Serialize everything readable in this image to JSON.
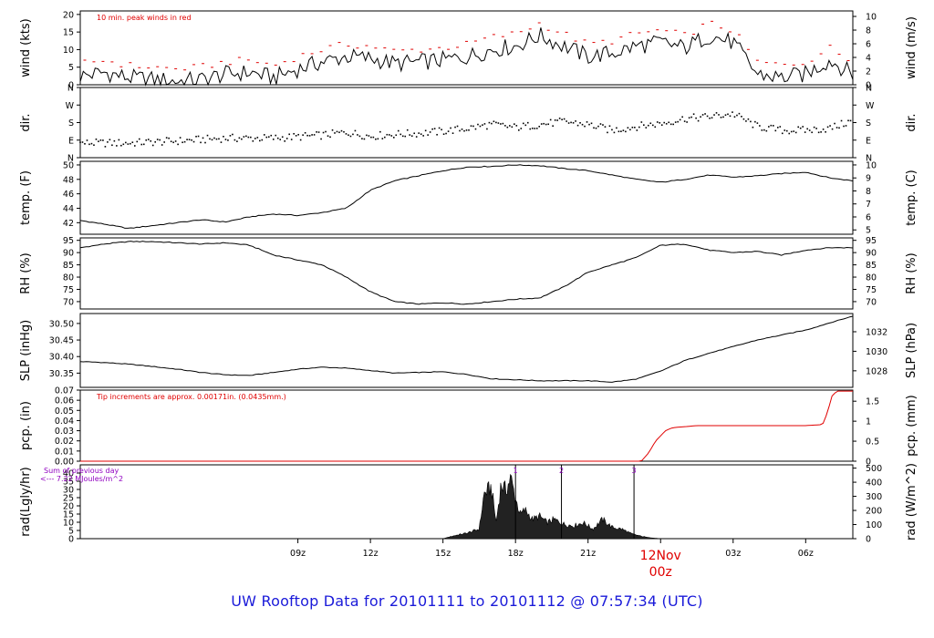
{
  "chart_data": {
    "type": "line",
    "title": "UW Rooftop Data for 20101111  to  20101112 @ 07:57:34  (UTC)",
    "x_axis": {
      "ticks": [
        "09z",
        "12z",
        "15z",
        "18z",
        "21z",
        "00z",
        "03z",
        "06z"
      ],
      "day_label": "12Nov",
      "day_sublabel": "00z",
      "xlim": [
        -24.0,
        7.95
      ],
      "colors": {
        "day_label": "#e00000"
      }
    },
    "panels": [
      {
        "id": "wind",
        "ylabel_left": "wind (kts)",
        "ylabel_right": "wind (m/s)",
        "ylim": [
          0,
          21
        ],
        "left_ticks": [
          0,
          5,
          10,
          15,
          20
        ],
        "right_ticks": [
          {
            "label": "0",
            "value": 0
          },
          {
            "label": "2",
            "value": 3.89
          },
          {
            "label": "4",
            "value": 7.78
          },
          {
            "label": "6",
            "value": 11.66
          },
          {
            "label": "8",
            "value": 15.55
          },
          {
            "label": "10",
            "value": 19.44
          }
        ],
        "annotation": "10 min. peak winds in red",
        "annotation_color": "#e00000",
        "peak_color": "#e00000",
        "series": [
          {
            "name": "wind",
            "style": "line",
            "color": "#000000",
            "x": [
              -24.0,
              -23.0,
              -22.0,
              -21.0,
              -20.0,
              -19.0,
              -18.0,
              -17.0,
              -16.0,
              -15.0,
              -14.0,
              -13.0,
              -12.0,
              -11.0,
              -10.0,
              -9.0,
              -8.0,
              -7.0,
              -6.0,
              -5.0,
              -4.0,
              -3.0,
              -2.0,
              -1.0,
              0.0,
              1.0,
              2.0,
              3.0,
              4.0,
              5.0,
              6.0,
              7.0,
              7.95
            ],
            "y": [
              2.5,
              3.5,
              2.0,
              1.5,
              1.0,
              1.5,
              3.0,
              3.5,
              2.0,
              4.5,
              6.5,
              8.0,
              7.5,
              6.0,
              6.5,
              7.0,
              8.0,
              10.0,
              11.0,
              14.0,
              11.0,
              8.0,
              9.0,
              11.0,
              12.0,
              10.5,
              14.0,
              12.0,
              3.0,
              2.0,
              3.0,
              7.0,
              3.0
            ]
          }
        ]
      },
      {
        "id": "dir",
        "ylabel_left": "dir.",
        "ylabel_right": "dir.",
        "ylim": [
          0,
          360
        ],
        "left_ticks": [
          {
            "label": "N",
            "value": 0
          },
          {
            "label": "E",
            "value": 90
          },
          {
            "label": "S",
            "value": 180
          },
          {
            "label": "W",
            "value": 270
          },
          {
            "label": "N",
            "value": 360
          }
        ],
        "right_ticks": [
          {
            "label": "N",
            "value": 0
          },
          {
            "label": "E",
            "value": 90
          },
          {
            "label": "S",
            "value": 180
          },
          {
            "label": "W",
            "value": 270
          },
          {
            "label": "N",
            "value": 360
          }
        ],
        "series": [
          {
            "name": "dir",
            "style": "points",
            "color": "#000000",
            "x": [
              -24.0,
              -22.0,
              -20.0,
              -18.0,
              -16.0,
              -14.0,
              -13.0,
              -12.0,
              -11.0,
              -10.0,
              -9.0,
              -8.0,
              -7.0,
              -6.0,
              -5.0,
              -4.0,
              -3.0,
              -2.0,
              -1.0,
              0.0,
              1.0,
              2.0,
              3.0,
              4.0,
              5.0,
              6.0,
              7.0,
              7.95
            ],
            "y": [
              75,
              75,
              85,
              100,
              100,
              115,
              130,
              110,
              120,
              125,
              135,
              150,
              170,
              155,
              170,
              185,
              170,
              140,
              160,
              175,
              200,
              210,
              225,
              160,
              140,
              140,
              150,
              190
            ]
          }
        ]
      },
      {
        "id": "temp",
        "ylabel_left": "temp. (F)",
        "ylabel_right": "temp. (C)",
        "ylim": [
          40.4,
          50.5
        ],
        "left_ticks": [
          42,
          44,
          46,
          48,
          50
        ],
        "right_ticks": [
          {
            "label": "5",
            "value": 41.0
          },
          {
            "label": "6",
            "value": 42.8
          },
          {
            "label": "7",
            "value": 44.6
          },
          {
            "label": "8",
            "value": 46.4
          },
          {
            "label": "9",
            "value": 48.2
          },
          {
            "label": "10",
            "value": 50.0
          }
        ],
        "series": [
          {
            "name": "temp",
            "style": "line",
            "color": "#000000",
            "x": [
              -24.0,
              -23.0,
              -22.0,
              -21.0,
              -20.0,
              -19.0,
              -18.0,
              -17.0,
              -16.0,
              -15.0,
              -14.0,
              -13.0,
              -12.0,
              -11.0,
              -10.0,
              -9.0,
              -8.0,
              -7.0,
              -6.0,
              -5.0,
              -4.0,
              -3.0,
              -2.0,
              -1.0,
              0.0,
              1.0,
              2.0,
              3.0,
              4.0,
              5.0,
              6.0,
              7.0,
              7.95
            ],
            "y": [
              42.3,
              41.8,
              41.2,
              41.6,
              42.0,
              42.4,
              42.1,
              42.8,
              43.2,
              43.0,
              43.4,
              44.0,
              46.5,
              47.8,
              48.5,
              49.2,
              49.7,
              49.8,
              50.0,
              49.9,
              49.5,
              49.2,
              48.6,
              48.0,
              47.6,
              48.0,
              48.6,
              48.3,
              48.5,
              48.8,
              49.0,
              48.2,
              47.8
            ]
          }
        ]
      },
      {
        "id": "rh",
        "ylabel_left": "RH (%)",
        "ylabel_right": "RH (%)",
        "ylim": [
          67.0,
          96.0
        ],
        "left_ticks": [
          70,
          75,
          80,
          85,
          90,
          95
        ],
        "right_ticks": [
          {
            "label": "70",
            "value": 70
          },
          {
            "label": "75",
            "value": 75
          },
          {
            "label": "80",
            "value": 80
          },
          {
            "label": "85",
            "value": 85
          },
          {
            "label": "90",
            "value": 90
          },
          {
            "label": "95",
            "value": 95
          }
        ],
        "series": [
          {
            "name": "rh",
            "style": "line",
            "color": "#000000",
            "x": [
              -24.0,
              -23.0,
              -22.0,
              -21.0,
              -20.0,
              -19.0,
              -18.0,
              -17.0,
              -16.0,
              -15.0,
              -14.0,
              -13.0,
              -12.0,
              -11.0,
              -10.0,
              -9.0,
              -8.0,
              -7.0,
              -6.0,
              -5.0,
              -4.0,
              -3.0,
              -2.0,
              -1.0,
              0.0,
              1.0,
              2.0,
              3.0,
              4.0,
              5.0,
              6.0,
              7.0,
              7.95
            ],
            "y": [
              92.0,
              93.5,
              94.5,
              94.5,
              94.0,
              93.5,
              94.0,
              93.0,
              89.0,
              87.0,
              85.0,
              80.0,
              74.0,
              70.0,
              69.0,
              69.5,
              69.0,
              70.0,
              71.0,
              71.5,
              76.0,
              82.0,
              85.0,
              88.0,
              93.0,
              93.5,
              91.0,
              90.0,
              90.5,
              89.0,
              91.0,
              92.0,
              92.0
            ]
          }
        ]
      },
      {
        "id": "slp",
        "ylabel_left": "SLP (inHg)",
        "ylabel_right": "SLP (hPa)",
        "ylim": [
          30.307,
          30.53
        ],
        "left_ticks": [
          {
            "label": "30.35",
            "value": 30.35
          },
          {
            "label": "30.40",
            "value": 30.4
          },
          {
            "label": "30.45",
            "value": 30.45
          },
          {
            "label": "30.50",
            "value": 30.5
          }
        ],
        "right_ticks": [
          {
            "label": "1028",
            "value": 30.357
          },
          {
            "label": "1030",
            "value": 30.416
          },
          {
            "label": "1032",
            "value": 30.475
          }
        ],
        "series": [
          {
            "name": "slp",
            "style": "line",
            "color": "#000000",
            "x": [
              -24.0,
              -23.0,
              -22.0,
              -21.0,
              -20.0,
              -19.0,
              -18.0,
              -17.0,
              -16.0,
              -15.0,
              -14.0,
              -13.0,
              -12.0,
              -11.0,
              -10.0,
              -9.0,
              -8.0,
              -7.0,
              -6.0,
              -5.0,
              -4.0,
              -3.0,
              -2.0,
              -1.0,
              0.0,
              1.0,
              2.0,
              3.0,
              4.0,
              5.0,
              6.0,
              7.0,
              7.95
            ],
            "y": [
              30.385,
              30.382,
              30.377,
              30.37,
              30.362,
              30.352,
              30.345,
              30.343,
              30.352,
              30.362,
              30.368,
              30.365,
              30.358,
              30.35,
              30.352,
              30.354,
              30.346,
              30.333,
              30.33,
              30.327,
              30.327,
              30.327,
              30.323,
              30.332,
              30.356,
              30.388,
              30.41,
              30.43,
              30.45,
              30.465,
              30.48,
              30.502,
              30.522
            ]
          }
        ]
      },
      {
        "id": "pcp",
        "ylabel_left": "pcp. (in)",
        "ylabel_right": "pcp. (mm)",
        "ylim": [
          0,
          0.07
        ],
        "left_ticks": [
          {
            "label": "0.00",
            "value": 0
          },
          {
            "label": "0.01",
            "value": 0.01
          },
          {
            "label": "0.02",
            "value": 0.02
          },
          {
            "label": "0.03",
            "value": 0.03
          },
          {
            "label": "0.04",
            "value": 0.04
          },
          {
            "label": "0.05",
            "value": 0.05
          },
          {
            "label": "0.06",
            "value": 0.06
          },
          {
            "label": "0.07",
            "value": 0.07
          }
        ],
        "right_ticks": [
          {
            "label": "0",
            "value": 0
          },
          {
            "label": "0.5",
            "value": 0.01969
          },
          {
            "label": "1",
            "value": 0.03937
          },
          {
            "label": "1.5",
            "value": 0.05906
          }
        ],
        "annotation": "Tip increments are approx. 0.00171in. (0.0435mm.)",
        "annotation_color": "#e00000",
        "series": [
          {
            "name": "pcp",
            "style": "line",
            "color": "#e00000",
            "x": [
              -24.0,
              -0.8,
              -0.5,
              -0.2,
              0.2,
              0.5,
              1.0,
              1.5,
              2.0,
              3.0,
              4.0,
              5.0,
              6.0,
              6.7,
              6.9,
              7.1,
              7.3,
              7.95
            ],
            "y": [
              0.0,
              0.0,
              0.008,
              0.02,
              0.03,
              0.033,
              0.034,
              0.035,
              0.035,
              0.035,
              0.035,
              0.035,
              0.035,
              0.036,
              0.048,
              0.065,
              0.069,
              0.069
            ]
          }
        ]
      },
      {
        "id": "rad",
        "ylabel_left": "rad(Lgly/hr)",
        "ylabel_right": "rad (W/m^2)",
        "ylim": [
          0,
          45.0
        ],
        "left_ticks": [
          0,
          5,
          10,
          15,
          20,
          25,
          30,
          35,
          40
        ],
        "right_ticks": [
          {
            "label": "0",
            "value": 0
          },
          {
            "label": "100",
            "value": 8.6
          },
          {
            "label": "200",
            "value": 17.2
          },
          {
            "label": "300",
            "value": 25.8
          },
          {
            "label": "400",
            "value": 34.4
          },
          {
            "label": "500",
            "value": 43.0
          }
        ],
        "annotation": "Sum of previous day",
        "annotation2": "<--- 7.22 MJoules/m^2",
        "annotation_color": "#9000c0",
        "markers": [
          {
            "label": "1",
            "x": -6.0
          },
          {
            "label": "2",
            "x": -4.1
          },
          {
            "label": "3",
            "x": -1.1
          }
        ],
        "series": [
          {
            "name": "rad",
            "style": "area",
            "color": "#222222",
            "x": [
              -9.0,
              -8.5,
              -8.0,
              -7.5,
              -7.3,
              -7.0,
              -6.8,
              -6.6,
              -6.4,
              -6.2,
              -6.0,
              -5.8,
              -5.6,
              -5.3,
              -5.0,
              -4.7,
              -4.4,
              -4.0,
              -3.6,
              -3.2,
              -2.8,
              -2.4,
              -2.0,
              -1.6,
              -1.2,
              -0.8,
              -0.4,
              0.0
            ],
            "y": [
              0.0,
              2.0,
              3.5,
              6.0,
              28.0,
              32.0,
              10.0,
              34.0,
              30.0,
              38.0,
              25.0,
              15.0,
              18.0,
              12.0,
              14.0,
              10.0,
              12.0,
              9.0,
              8.0,
              10.0,
              6.0,
              12.0,
              7.0,
              6.0,
              3.0,
              1.5,
              0.5,
              0.0
            ]
          }
        ]
      }
    ]
  }
}
